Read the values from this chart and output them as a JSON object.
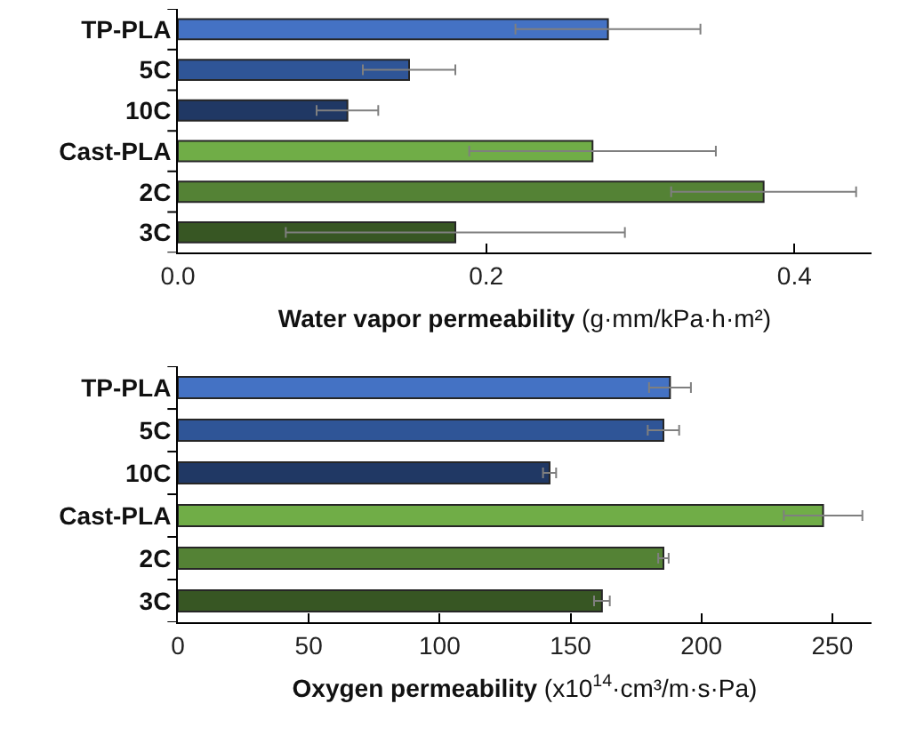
{
  "chart_data": [
    {
      "type": "bar",
      "orientation": "horizontal",
      "categories": [
        "TP-PLA",
        "5C",
        "10C",
        "Cast-PLA",
        "2C",
        "3C"
      ],
      "values": [
        0.279,
        0.15,
        0.11,
        0.269,
        0.38,
        0.18
      ],
      "errors": [
        0.06,
        0.03,
        0.02,
        0.08,
        0.06,
        0.11
      ],
      "colors": [
        "#4472c4",
        "#2f5597",
        "#203864",
        "#70ad47",
        "#548235",
        "#375623"
      ],
      "xlim": [
        0,
        0.45
      ],
      "xticks": [
        {
          "value": 0,
          "label": "0.0"
        },
        0.2,
        0.4
      ],
      "xlabel": "Water vapor permeability (g·mm/kPa·h·m²)"
    },
    {
      "type": "bar",
      "orientation": "horizontal",
      "categories": [
        "TP-PLA",
        "5C",
        "10C",
        "Cast-PLA",
        "2C",
        "3C"
      ],
      "values": [
        188,
        185.5,
        142,
        246.5,
        185.5,
        162
      ],
      "errors": [
        8,
        6,
        2.5,
        15,
        2,
        3
      ],
      "colors": [
        "#4472c4",
        "#2f5597",
        "#203864",
        "#70ad47",
        "#548235",
        "#375623"
      ],
      "xlim": [
        0,
        265
      ],
      "xticks": [
        0,
        50,
        100,
        150,
        200,
        250
      ],
      "xlabel": "Oxygen permeability (x10$^{14}$·cm³/m·s·Pa)"
    }
  ]
}
